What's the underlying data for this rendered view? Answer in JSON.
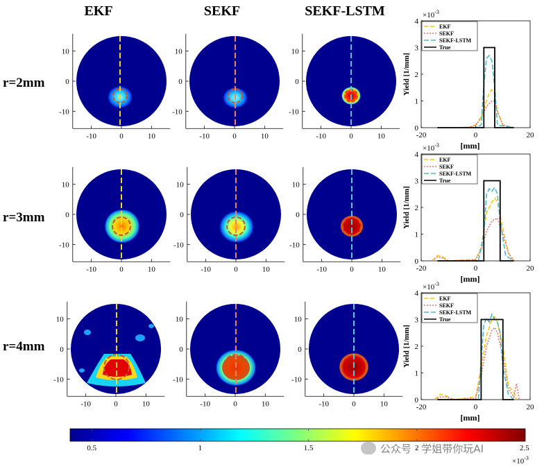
{
  "figure": {
    "column_titles": [
      "EKF",
      "SEKF",
      "SEKF-LSTM"
    ],
    "row_labels": [
      "r=2mm",
      "r=3mm",
      "r=4mm"
    ],
    "map_x_ticks": [
      "-10",
      "0",
      "10"
    ],
    "map_y_ticks": [
      "10",
      "0",
      "-10"
    ],
    "colorbar": {
      "ticks": [
        "0.5",
        "1",
        "1.5",
        "2",
        "2.5"
      ],
      "tick_values": [
        0.5,
        1.0,
        1.5,
        2.0,
        2.5
      ],
      "range": [
        0.4,
        2.5
      ],
      "exponent": "×10",
      "exponent_power": "-3"
    },
    "line_colors": {
      "EKF": "#f2c80f",
      "SEKF": "#e8746a",
      "SEKF-LSTM": "#4fb7c9",
      "True": "#000000"
    }
  },
  "watermark": {
    "text": "公众号 · 学姐带你玩AI"
  },
  "chart_data": [
    {
      "type": "line",
      "title": "r=2mm",
      "xlabel": "[mm]",
      "ylabel": "Yield [1/mm]",
      "xlim": [
        -20,
        20
      ],
      "ylim": [
        0,
        4
      ],
      "xticks": [
        "-20",
        "0",
        "20"
      ],
      "yticks": [
        "0",
        "1",
        "2",
        "3",
        "4"
      ],
      "y_exponent": "×10",
      "y_exponent_power": "-3",
      "legend": [
        "EKF",
        "SEKF",
        "SEKF-LSTM",
        "True"
      ],
      "series": [
        {
          "name": "EKF",
          "x": [
            -14,
            -6,
            -2,
            0,
            2,
            4,
            5,
            6,
            7,
            8,
            10,
            14
          ],
          "y": [
            0,
            0,
            0.02,
            0.1,
            0.4,
            1.0,
            1.3,
            1.42,
            1.25,
            0.6,
            0.1,
            0
          ]
        },
        {
          "name": "SEKF",
          "x": [
            -14,
            -6,
            -2,
            0,
            2,
            4,
            6,
            7,
            8,
            10,
            14
          ],
          "y": [
            0,
            0,
            0.02,
            0.1,
            0.35,
            0.8,
            1.0,
            1.0,
            0.6,
            0.1,
            0
          ]
        },
        {
          "name": "SEKF-LSTM",
          "x": [
            -14,
            0,
            2,
            3,
            4,
            5,
            6,
            7,
            8,
            14
          ],
          "y": [
            0,
            0,
            0.1,
            1.6,
            2.6,
            2.7,
            2.5,
            1.5,
            0.1,
            0
          ]
        },
        {
          "name": "True",
          "x": [
            -14,
            3,
            3,
            7,
            7,
            14
          ],
          "y": [
            0,
            0,
            3,
            3,
            0,
            0
          ]
        }
      ]
    },
    {
      "type": "line",
      "title": "r=3mm",
      "xlabel": "[mm]",
      "ylabel": "Yield [1/mm]",
      "xlim": [
        -20,
        20
      ],
      "ylim": [
        0,
        4
      ],
      "xticks": [
        "-20",
        "0",
        "20"
      ],
      "yticks": [
        "0",
        "1",
        "2",
        "3",
        "4"
      ],
      "y_exponent": "×10",
      "y_exponent_power": "-3",
      "legend": [
        "EKF",
        "SEKF",
        "SEKF-LSTM",
        "True"
      ],
      "series": [
        {
          "name": "EKF",
          "x": [
            -16,
            -14,
            -12,
            -10,
            0,
            2,
            4,
            6,
            7,
            8,
            10,
            12,
            14
          ],
          "y": [
            0,
            0.2,
            0.15,
            0,
            0.05,
            0.5,
            1.8,
            2.2,
            2.35,
            2.2,
            1.2,
            0.3,
            0
          ]
        },
        {
          "name": "SEKF",
          "x": [
            -16,
            -14,
            -12,
            -10,
            0,
            2,
            4,
            6,
            8,
            10,
            12,
            14
          ],
          "y": [
            0,
            0.15,
            0.1,
            0,
            0.05,
            0.4,
            1.1,
            1.5,
            1.6,
            1.0,
            0.3,
            0
          ]
        },
        {
          "name": "SEKF-LSTM",
          "x": [
            -14,
            1,
            3,
            4,
            5,
            6,
            7,
            8,
            9,
            11,
            14
          ],
          "y": [
            0,
            0,
            1.0,
            2.5,
            2.7,
            2.6,
            2.75,
            2.5,
            1.5,
            0.2,
            0
          ]
        },
        {
          "name": "True",
          "x": [
            -14,
            3,
            3,
            9,
            9,
            14
          ],
          "y": [
            0,
            0,
            3,
            3,
            0,
            0
          ]
        }
      ]
    },
    {
      "type": "line",
      "title": "r=4mm",
      "xlabel": "[mm]",
      "ylabel": "Yield [1/mm]",
      "xlim": [
        -20,
        20
      ],
      "ylim": [
        0,
        4
      ],
      "xticks": [
        "-20",
        "0",
        "20"
      ],
      "yticks": [
        "0",
        "1",
        "2",
        "3",
        "4"
      ],
      "y_exponent": "×10",
      "y_exponent_power": "-3",
      "legend": [
        "EKF",
        "SEKF",
        "SEKF-LSTM",
        "True"
      ],
      "series": [
        {
          "name": "EKF",
          "x": [
            -15,
            -13,
            -11,
            -8,
            0,
            2,
            4,
            6,
            7,
            8,
            10,
            12,
            14,
            15
          ],
          "y": [
            0,
            0.2,
            0.15,
            0,
            0.1,
            1.2,
            2.4,
            3.0,
            3.1,
            2.9,
            2.0,
            0.5,
            0.3,
            0
          ]
        },
        {
          "name": "SEKF",
          "x": [
            -15,
            -13,
            -11,
            -8,
            0,
            2,
            4,
            6,
            7,
            8,
            10,
            12,
            14,
            15,
            16
          ],
          "y": [
            0,
            0.1,
            0.1,
            0,
            0.05,
            0.9,
            2.0,
            2.6,
            2.7,
            2.5,
            1.6,
            0.4,
            0.1,
            0.6,
            0
          ]
        },
        {
          "name": "SEKF-LSTM",
          "x": [
            -14,
            1,
            2,
            3,
            4,
            5,
            6,
            7,
            8,
            9,
            10,
            12,
            14
          ],
          "y": [
            0,
            0,
            1.5,
            2.8,
            3.05,
            2.9,
            3.2,
            3.0,
            2.9,
            2.5,
            1.2,
            0.2,
            0
          ]
        },
        {
          "name": "True",
          "x": [
            -14,
            2,
            2,
            10,
            10,
            14
          ],
          "y": [
            0,
            0,
            3,
            3,
            0,
            0
          ]
        }
      ]
    }
  ]
}
